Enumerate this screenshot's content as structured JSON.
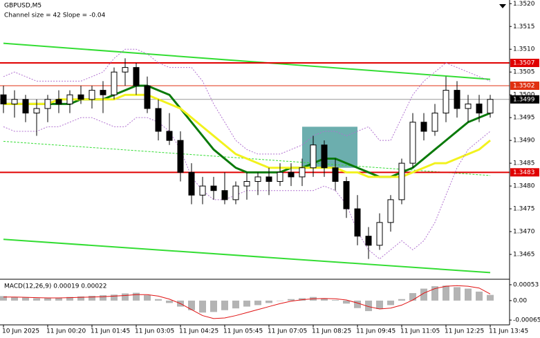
{
  "chart_data": [
    {
      "type": "candlestick",
      "title": "GBPUSD,M5",
      "subtitle": "Channel size = 42 Slope = -0.04",
      "categories": [
        "10 Jun 2025",
        null,
        null,
        null,
        "11 Jun 00:20",
        null,
        null,
        null,
        "11 Jun 01:45",
        null,
        null,
        null,
        "11 Jun 03:05",
        null,
        null,
        null,
        "11 Jun 04:25",
        null,
        null,
        null,
        "11 Jun 05:45",
        null,
        null,
        null,
        "11 Jun 07:05",
        null,
        null,
        null,
        "11 Jun 08:25",
        null,
        null,
        null,
        "11 Jun 09:45",
        null,
        null,
        null,
        "11 Jun 11:05",
        null,
        null,
        null,
        "11 Jun 12:25",
        null,
        null,
        null,
        "11 Jun 13:45"
      ],
      "open": [
        1.35,
        1.3498,
        1.3499,
        1.3496,
        1.3497,
        1.3499,
        1.3498,
        1.35,
        1.3499,
        1.3501,
        1.35,
        1.3505,
        1.3506,
        1.3502,
        1.3497,
        1.3492,
        1.349,
        1.3483,
        1.3478,
        1.348,
        1.3479,
        1.3477,
        1.348,
        1.3481,
        1.3482,
        1.3481,
        1.3483,
        1.3482,
        1.3484,
        1.3489,
        1.3484,
        1.3481,
        1.3475,
        1.3469,
        1.3467,
        1.3472,
        1.3477,
        1.3485,
        1.3494,
        1.3492,
        1.3496,
        1.3501,
        1.3497,
        1.3498,
        1.3496
      ],
      "high": [
        1.3502,
        1.3501,
        1.35,
        1.3499,
        1.35,
        1.3501,
        1.3501,
        1.3502,
        1.3502,
        1.3503,
        1.3506,
        1.3508,
        1.3507,
        1.3504,
        1.3499,
        1.3496,
        1.3492,
        1.3485,
        1.3482,
        1.3482,
        1.3483,
        1.3481,
        1.3483,
        1.3483,
        1.3484,
        1.3485,
        1.3485,
        1.3486,
        1.3491,
        1.349,
        1.3486,
        1.3482,
        1.3478,
        1.3471,
        1.3474,
        1.3478,
        1.3486,
        1.3496,
        1.3496,
        1.3498,
        1.3504,
        1.3503,
        1.35,
        1.35,
        1.35
      ],
      "low": [
        1.3496,
        1.3495,
        1.3494,
        1.3491,
        1.3494,
        1.3496,
        1.3496,
        1.3498,
        1.3497,
        1.3496,
        1.3499,
        1.3502,
        1.35,
        1.3496,
        1.349,
        1.3489,
        1.3481,
        1.3476,
        1.3476,
        1.3477,
        1.3476,
        1.3476,
        1.3477,
        1.3478,
        1.3478,
        1.348,
        1.348,
        1.348,
        1.3482,
        1.3482,
        1.3479,
        1.3473,
        1.3467,
        1.3464,
        1.3466,
        1.347,
        1.3476,
        1.3484,
        1.349,
        1.3491,
        1.3494,
        1.3495,
        1.3494,
        1.3494,
        1.3495
      ],
      "close": [
        1.3498,
        1.3499,
        1.3496,
        1.3497,
        1.3499,
        1.3498,
        1.35,
        1.3499,
        1.3501,
        1.35,
        1.3505,
        1.3506,
        1.3502,
        1.3497,
        1.3492,
        1.349,
        1.3483,
        1.3478,
        1.348,
        1.3479,
        1.3477,
        1.348,
        1.3481,
        1.3482,
        1.3481,
        1.3483,
        1.3482,
        1.3484,
        1.3489,
        1.3484,
        1.3481,
        1.3475,
        1.3469,
        1.3467,
        1.3472,
        1.3477,
        1.3485,
        1.3494,
        1.3492,
        1.3496,
        1.3501,
        1.3497,
        1.3498,
        1.3496,
        1.3499
      ],
      "lines": [
        {
          "color": "#0a7a0a",
          "width": 3,
          "dash": "none",
          "values": [
            1.3498,
            1.3498,
            1.3498,
            1.3498,
            1.3498,
            1.3498,
            1.3498,
            1.3499,
            1.3499,
            1.3499,
            1.35,
            1.3501,
            1.3502,
            1.3502,
            1.3501,
            1.35,
            1.3497,
            1.3494,
            1.3491,
            1.3488,
            1.3486,
            1.3484,
            1.3483,
            1.3483,
            1.3483,
            1.3483,
            1.3484,
            1.3484,
            1.3485,
            1.3486,
            1.3486,
            1.3485,
            1.3484,
            1.3483,
            1.3482,
            1.3482,
            1.3483,
            1.3484,
            1.3486,
            1.3488,
            1.349,
            1.3492,
            1.3494,
            1.3495,
            1.3496
          ]
        },
        {
          "color": "#f2f21e",
          "width": 3,
          "dash": "none",
          "values": [
            1.3498,
            1.3498,
            1.3498,
            1.3498,
            1.3498,
            1.3499,
            1.3499,
            1.3499,
            1.3499,
            1.3499,
            1.3499,
            1.35,
            1.35,
            1.35,
            1.3499,
            1.3498,
            1.3497,
            1.3495,
            1.3493,
            1.3491,
            1.3489,
            1.3487,
            1.3486,
            1.3485,
            1.3484,
            1.3484,
            1.3484,
            1.3484,
            1.3484,
            1.3484,
            1.3484,
            1.3483,
            1.3483,
            1.3482,
            1.3482,
            1.3482,
            1.3482,
            1.3483,
            1.3484,
            1.3485,
            1.3485,
            1.3486,
            1.3487,
            1.3488,
            1.349
          ]
        },
        {
          "color": "#b070d0",
          "width": 1,
          "dash": "2 2",
          "values": [
            1.3504,
            1.3505,
            1.3504,
            1.3503,
            1.3503,
            1.3503,
            1.3503,
            1.3503,
            1.3504,
            1.3505,
            1.3508,
            1.351,
            1.351,
            1.3509,
            1.3507,
            1.3506,
            1.3506,
            1.3506,
            1.3503,
            1.3498,
            1.3494,
            1.349,
            1.3488,
            1.3487,
            1.3487,
            1.3487,
            1.3488,
            1.3489,
            1.3491,
            1.3492,
            1.3492,
            1.3491,
            1.3492,
            1.3493,
            1.349,
            1.349,
            1.3495,
            1.35,
            1.3503,
            1.3505,
            1.3507,
            1.3506,
            1.3505,
            1.3504,
            1.3503
          ]
        },
        {
          "color": "#b070d0",
          "width": 1,
          "dash": "2 2",
          "values": [
            1.3493,
            1.3492,
            1.3492,
            1.3492,
            1.3493,
            1.3493,
            1.3494,
            1.3495,
            1.3495,
            1.3494,
            1.3493,
            1.3493,
            1.3495,
            1.3495,
            1.3494,
            1.3492,
            1.3488,
            1.3482,
            1.3479,
            1.3477,
            1.3477,
            1.3478,
            1.3479,
            1.3479,
            1.3479,
            1.3479,
            1.3479,
            1.3479,
            1.3479,
            1.348,
            1.3479,
            1.3476,
            1.347,
            1.3466,
            1.3464,
            1.3466,
            1.3468,
            1.3466,
            1.3468,
            1.3472,
            1.3478,
            1.3484,
            1.3488,
            1.349,
            1.3492
          ]
        }
      ],
      "channel_lines": [
        {
          "color": "#33dd33",
          "width": 2,
          "dash": "none",
          "values": [
            1.35113,
            1.35034
          ]
        },
        {
          "color": "#33dd33",
          "width": 1,
          "dash": "3 2",
          "values": [
            1.34898,
            1.34823
          ]
        },
        {
          "color": "#33dd33",
          "width": 2,
          "dash": "none",
          "values": [
            1.34683,
            1.3461
          ]
        }
      ],
      "levels": [
        {
          "value": 1.3507,
          "color": "#e00000",
          "width": 2
        },
        {
          "value": 1.3502,
          "color": "#e03010",
          "width": 1
        },
        {
          "value": 1.3483,
          "color": "#e00000",
          "width": 2
        },
        {
          "value": 1.3499,
          "color": "#000000",
          "width": 1
        }
      ],
      "zone": {
        "x": [
          27,
          32
        ],
        "y": [
          1.3484,
          1.3493
        ],
        "color": "#2e8b8b"
      },
      "ylim": [
        1.34597,
        1.35208
      ],
      "yticks": [
        {
          "value": 1.352,
          "label": "1.3520"
        },
        {
          "value": 1.3515,
          "label": "1.3515"
        },
        {
          "value": 1.351,
          "label": "1.3510"
        },
        {
          "value": 1.3505,
          "label": "1.3505"
        },
        {
          "value": 1.35,
          "label": "1.3500"
        },
        {
          "value": 1.3495,
          "label": "1.3495"
        },
        {
          "value": 1.349,
          "label": "1.3490"
        },
        {
          "value": 1.3485,
          "label": "1.3485"
        },
        {
          "value": 1.348,
          "label": "1.3480"
        },
        {
          "value": 1.3475,
          "label": "1.3475"
        },
        {
          "value": 1.347,
          "label": "1.3470"
        },
        {
          "value": 1.3465,
          "label": "1.3465"
        }
      ]
    },
    {
      "type": "macd",
      "title": "MACD(12,26,9) 0.00019 0.00022",
      "values": [
        0.00015,
        0.00012,
        0.0001,
        8e-05,
        8e-05,
        0.0001,
        0.00012,
        0.00014,
        0.00016,
        0.00018,
        0.0002,
        0.00024,
        0.00026,
        0.00018,
        5e-05,
        -8e-05,
        -0.0002,
        -0.00032,
        -0.0004,
        -0.00038,
        -0.00032,
        -0.00026,
        -0.0002,
        -0.00015,
        -8e-05,
        0,
        5e-05,
        8e-05,
        0.00012,
        8e-05,
        2e-05,
        -0.0001,
        -0.00025,
        -0.00035,
        -0.00028,
        -0.00015,
        5e-05,
        0.00025,
        0.0004,
        0.00048,
        0.0005,
        0.00045,
        0.0004,
        0.0003,
        0.00019
      ],
      "color": "#b4b4b4",
      "signal": [
        0.00012,
        0.00012,
        0.00011,
        0.0001,
        9e-05,
        9e-05,
        0.0001,
        0.00011,
        0.00012,
        0.00013,
        0.00015,
        0.00017,
        0.0002,
        0.0002,
        0.00015,
        5e-05,
        -0.0001,
        -0.0003,
        -0.0005,
        -0.0006,
        -0.00058,
        -0.0005,
        -0.0004,
        -0.0003,
        -0.0002,
        -0.0001,
        -2e-05,
        3e-05,
        6e-05,
        7e-05,
        6e-05,
        2e-05,
        -8e-05,
        -0.0002,
        -0.00028,
        -0.00025,
        -0.00015,
        2e-05,
        0.00025,
        0.0004,
        0.00048,
        0.0005,
        0.00048,
        0.00042,
        0.00022
      ],
      "signal_color": "#e01010",
      "ylim": [
        -0.00081,
        0.00069
      ],
      "yticks": [
        0.00053,
        {
          "value": 0,
          "label": "0.00"
        },
        -0.00065
      ]
    }
  ]
}
